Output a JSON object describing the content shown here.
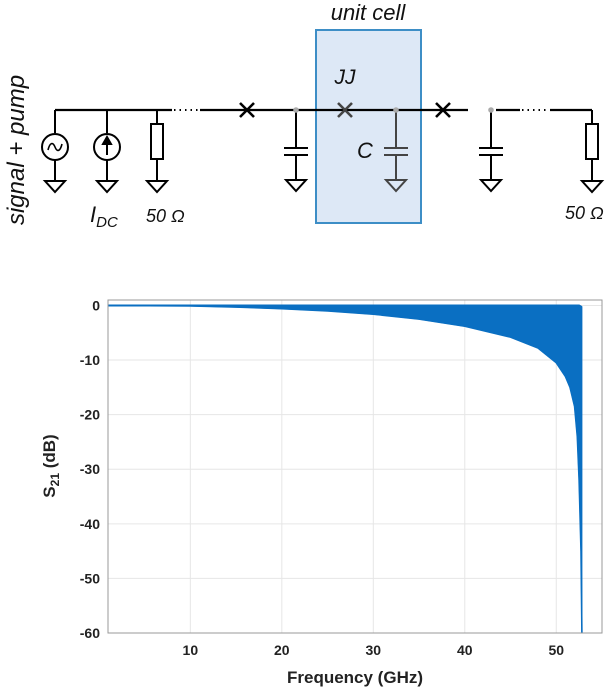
{
  "circuit": {
    "side_label": "signal + pump",
    "unit_cell_label": "unit cell",
    "jj_label": "JJ",
    "cap_label": "C",
    "idc_main": "I",
    "idc_sub": "DC",
    "r_left_label": "50 Ω",
    "r_right_label": "50 Ω",
    "colors": {
      "unit_cell_fill": "#dde8f6",
      "unit_cell_stroke": "#3d8ec6",
      "wire": "#000000",
      "node": "#aaaaaa"
    }
  },
  "chart_data": {
    "type": "area",
    "title": "",
    "xlabel": "Frequency (GHz)",
    "ylabel_main": "S",
    "ylabel_sub": "21",
    "ylabel_unit": " (dB)",
    "xlim": [
      1,
      55
    ],
    "ylim": [
      -60,
      1
    ],
    "xticks": [
      10,
      20,
      30,
      40,
      50
    ],
    "yticks": [
      0,
      -10,
      -20,
      -30,
      -40,
      -50,
      -60
    ],
    "grid": true,
    "series_color": "#0a6fc2",
    "upper_envelope": {
      "x": [
        1,
        10,
        20,
        30,
        40,
        45,
        50,
        52,
        52.5,
        52.8
      ],
      "y": [
        0,
        0,
        0,
        0,
        0,
        0,
        0,
        0,
        0,
        -0.3
      ]
    },
    "lower_envelope": {
      "x": [
        1,
        10,
        15,
        20,
        25,
        30,
        35,
        40,
        45,
        48,
        50,
        51,
        51.5,
        52,
        52.3,
        52.5,
        52.7,
        52.8
      ],
      "y": [
        0,
        -0.1,
        -0.3,
        -0.6,
        -1.0,
        -1.6,
        -2.5,
        -3.8,
        -5.8,
        -7.8,
        -10.5,
        -13,
        -15,
        -18.5,
        -24,
        -32,
        -45,
        -60
      ]
    }
  }
}
